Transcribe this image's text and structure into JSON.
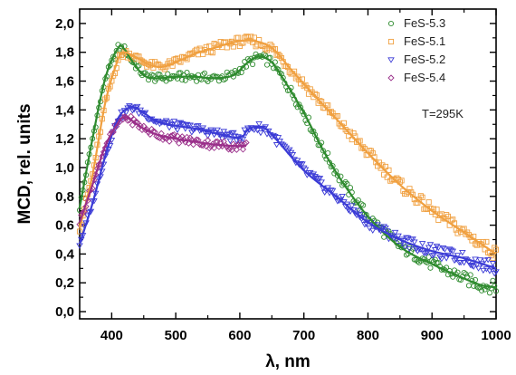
{
  "chart_data": {
    "type": "line",
    "xlabel": "λ, nm",
    "ylabel": "MCD, rel. units",
    "xlim": [
      350,
      1000
    ],
    "ylim": [
      -0.05,
      2.1
    ],
    "x_ticks": [
      400,
      500,
      600,
      700,
      800,
      900,
      1000
    ],
    "x_tick_labels": [
      "400",
      "500",
      "600",
      "700",
      "800",
      "900",
      "1000"
    ],
    "y_ticks": [
      0.0,
      0.2,
      0.4,
      0.6,
      0.8,
      1.0,
      1.2,
      1.4,
      1.6,
      1.8,
      2.0
    ],
    "y_tick_labels": [
      "0,0",
      "0,2",
      "0,4",
      "0,6",
      "0,8",
      "1,0",
      "1,2",
      "1,4",
      "1,6",
      "1,8",
      "2,0"
    ],
    "annotation": "T=295K",
    "legend_position": "top-right",
    "series": [
      {
        "name": "FeS-5.3",
        "color": "#2e8b2e",
        "marker": "circle",
        "x": [
          350,
          370,
          390,
          410,
          420,
          430,
          450,
          470,
          500,
          530,
          560,
          590,
          610,
          630,
          650,
          670,
          700,
          730,
          760,
          800,
          850,
          900,
          950,
          980,
          1000
        ],
        "values": [
          0.72,
          1.2,
          1.62,
          1.83,
          1.82,
          1.75,
          1.64,
          1.62,
          1.63,
          1.63,
          1.62,
          1.64,
          1.72,
          1.77,
          1.73,
          1.6,
          1.38,
          1.12,
          0.9,
          0.66,
          0.45,
          0.33,
          0.23,
          0.18,
          0.17
        ]
      },
      {
        "name": "FeS-5.1",
        "color": "#f0a040",
        "marker": "square",
        "x": [
          350,
          370,
          390,
          410,
          420,
          440,
          460,
          480,
          500,
          530,
          560,
          590,
          620,
          650,
          680,
          700,
          750,
          800,
          850,
          900,
          950,
          1000
        ],
        "values": [
          0.58,
          0.95,
          1.45,
          1.75,
          1.8,
          1.76,
          1.71,
          1.7,
          1.73,
          1.79,
          1.83,
          1.87,
          1.88,
          1.83,
          1.68,
          1.58,
          1.34,
          1.1,
          0.88,
          0.7,
          0.55,
          0.4
        ]
      },
      {
        "name": "FeS-5.2",
        "color": "#3b3bd6",
        "marker": "triangle-down",
        "x": [
          350,
          370,
          390,
          410,
          430,
          450,
          470,
          500,
          530,
          560,
          590,
          605,
          610,
          620,
          640,
          660,
          700,
          750,
          800,
          850,
          900,
          950,
          1000
        ],
        "values": [
          0.47,
          0.75,
          1.08,
          1.34,
          1.42,
          1.38,
          1.32,
          1.29,
          1.27,
          1.24,
          1.21,
          1.22,
          1.25,
          1.28,
          1.27,
          1.18,
          0.98,
          0.8,
          0.62,
          0.5,
          0.42,
          0.37,
          0.3
        ]
      },
      {
        "name": "FeS-5.4",
        "color": "#9a2f8a",
        "marker": "diamond",
        "x": [
          350,
          370,
          390,
          410,
          420,
          430,
          450,
          470,
          500,
          530,
          560,
          590,
          610
        ],
        "values": [
          0.62,
          0.88,
          1.15,
          1.31,
          1.35,
          1.33,
          1.27,
          1.23,
          1.2,
          1.18,
          1.16,
          1.15,
          1.15
        ]
      }
    ]
  }
}
